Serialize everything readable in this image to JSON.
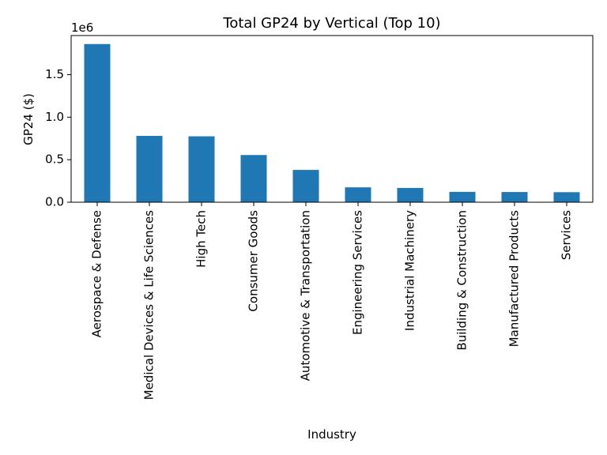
{
  "chart_data": {
    "type": "bar",
    "title": "Total GP24 by Vertical (Top 10)",
    "xlabel": "Industry",
    "ylabel": "GP24 ($)",
    "y_scale_label": "1e6",
    "categories": [
      "Aerospace & Defense",
      "Medical Devices & Life Sciences",
      "High Tech",
      "Consumer Goods",
      "Automotive & Transportation",
      "Engineering Services",
      "Industrial Machinery",
      "Building & Construction",
      "Manufactured Products",
      "Services"
    ],
    "values": [
      1860000,
      780000,
      775000,
      555000,
      380000,
      175000,
      168000,
      122000,
      120000,
      118000
    ],
    "ylim": [
      0,
      1960000
    ],
    "yticks": [
      0,
      500000,
      1000000,
      1500000
    ],
    "ytick_labels": [
      "0.0",
      "0.5",
      "1.0",
      "1.5"
    ],
    "bar_color": "#1f77b4",
    "grid": false,
    "legend": "none"
  }
}
